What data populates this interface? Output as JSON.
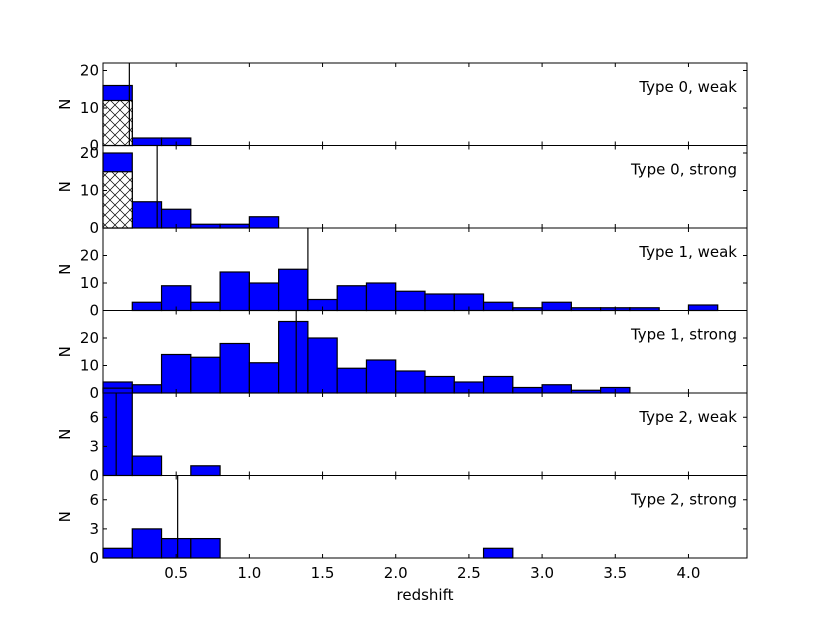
{
  "chart_data": {
    "type": "histogram",
    "xlabel": "redshift",
    "ylabel": "N",
    "xlim": [
      0.0,
      4.4
    ],
    "x_ticks": [
      0.5,
      1.0,
      1.5,
      2.0,
      2.5,
      3.0,
      3.5,
      4.0
    ],
    "x_tick_labels": [
      "0.5",
      "1.0",
      "1.5",
      "2.0",
      "2.5",
      "3.0",
      "3.5",
      "4.0"
    ],
    "bin_width": 0.2,
    "colors": {
      "bar_fill": "#0000ff",
      "hatch_fill": "#ffffff",
      "edge": "#000000"
    },
    "panels": [
      {
        "label": "Type 0, weak",
        "ylim": [
          0,
          22
        ],
        "yticks": [
          0,
          10,
          20
        ],
        "ytick_labels": [
          "0",
          "10",
          "20"
        ],
        "median": 0.18,
        "bins": [
          [
            0.0,
            16
          ],
          [
            0.2,
            2
          ],
          [
            0.4,
            2
          ]
        ],
        "hatched": [
          [
            0.0,
            12
          ]
        ]
      },
      {
        "label": "Type 0, strong",
        "ylim": [
          0,
          22
        ],
        "yticks": [
          0,
          10,
          20
        ],
        "ytick_labels": [
          "0",
          "10",
          "20"
        ],
        "median": 0.37,
        "bins": [
          [
            0.0,
            20
          ],
          [
            0.2,
            7
          ],
          [
            0.4,
            5
          ],
          [
            0.6,
            1
          ],
          [
            0.8,
            1
          ],
          [
            1.0,
            3
          ]
        ],
        "hatched": [
          [
            0.0,
            15
          ]
        ]
      },
      {
        "label": "Type 1, weak",
        "ylim": [
          0,
          30
        ],
        "yticks": [
          0,
          10,
          20
        ],
        "ytick_labels": [
          "0",
          "10",
          "20"
        ],
        "median": 1.4,
        "bins": [
          [
            0.2,
            3
          ],
          [
            0.4,
            9
          ],
          [
            0.6,
            3
          ],
          [
            0.8,
            14
          ],
          [
            1.0,
            10
          ],
          [
            1.2,
            15
          ],
          [
            1.4,
            4
          ],
          [
            1.6,
            9
          ],
          [
            1.8,
            10
          ],
          [
            2.0,
            7
          ],
          [
            2.2,
            6
          ],
          [
            2.4,
            6
          ],
          [
            2.6,
            3
          ],
          [
            2.8,
            1
          ],
          [
            3.0,
            3
          ],
          [
            3.2,
            1
          ],
          [
            3.4,
            1
          ],
          [
            3.6,
            1
          ],
          [
            4.0,
            2
          ]
        ],
        "hatched": []
      },
      {
        "label": "Type 1, strong",
        "ylim": [
          0,
          30
        ],
        "yticks": [
          0,
          10,
          20
        ],
        "ytick_labels": [
          "0",
          "10",
          "20"
        ],
        "median": 1.32,
        "bins": [
          [
            0.0,
            4
          ],
          [
            0.2,
            3
          ],
          [
            0.4,
            14
          ],
          [
            0.6,
            13
          ],
          [
            0.8,
            18
          ],
          [
            1.0,
            11
          ],
          [
            1.2,
            26
          ],
          [
            1.4,
            20
          ],
          [
            1.6,
            9
          ],
          [
            1.8,
            12
          ],
          [
            2.0,
            8
          ],
          [
            2.2,
            6
          ],
          [
            2.4,
            4
          ],
          [
            2.6,
            6
          ],
          [
            2.8,
            2
          ],
          [
            3.0,
            3
          ],
          [
            3.2,
            1
          ],
          [
            3.4,
            2
          ]
        ],
        "hatched": []
      },
      {
        "label": "Type 2, weak",
        "ylim": [
          0,
          8.5
        ],
        "yticks": [
          0,
          3,
          6
        ],
        "ytick_labels": [
          "0",
          "3",
          "6"
        ],
        "median": 0.09,
        "bins": [
          [
            0.0,
            9
          ],
          [
            0.2,
            2
          ],
          [
            0.6,
            1
          ]
        ],
        "hatched": []
      },
      {
        "label": "Type 2, strong",
        "ylim": [
          0,
          8.5
        ],
        "yticks": [
          0,
          3,
          6
        ],
        "ytick_labels": [
          "0",
          "3",
          "6"
        ],
        "median": 0.51,
        "bins": [
          [
            0.0,
            1
          ],
          [
            0.2,
            3
          ],
          [
            0.4,
            2
          ],
          [
            0.6,
            2
          ],
          [
            2.6,
            1
          ]
        ],
        "hatched": []
      }
    ]
  }
}
